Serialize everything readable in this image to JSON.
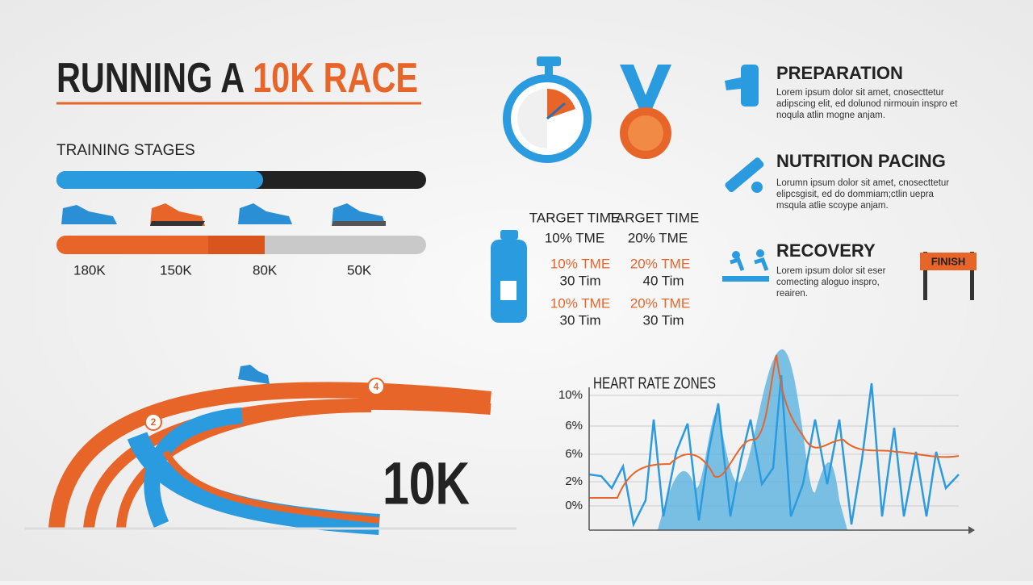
{
  "header": {
    "title_part1": "RUNNING A ",
    "title_part2": "10K RACE"
  },
  "training": {
    "title": "TRAINING STAGES",
    "labels": [
      "180K",
      "150K",
      "80K",
      "50K"
    ]
  },
  "target_table": {
    "header": [
      "TARGET TIME",
      "TARGET TIME"
    ],
    "rows": [
      [
        "10% TME",
        "20% TME"
      ],
      [
        "10% TME",
        "20% TME"
      ],
      [
        "30 Tim",
        "40 Tim"
      ],
      [
        "10% TME",
        "20% TME"
      ],
      [
        "30 Tim",
        "30 Tim"
      ]
    ]
  },
  "sections": [
    {
      "title": "PREPARATION",
      "lines": [
        "Lorem ipsum dolor sit amet, cnosecttetur",
        "adipscing elit, ed dolunod nirmouin inspro et",
        "noqula atlin mogne anjam."
      ]
    },
    {
      "title": "NUTRITION PACING",
      "lines": [
        "Lorumn ipsum dolor sit amet, cnosecttetur",
        "elipcsgisit, ed do dommiam;ctlin uepra",
        "msqula atlie scoype anjam."
      ]
    },
    {
      "title": "RECOVERY",
      "lines": [
        "Lorem ipsum dolor sit eser",
        "comecting aloguo inspro,",
        "reairen."
      ]
    }
  ],
  "finish_sign": "FINISH",
  "track": {
    "distance": "10K",
    "markers": [
      "2",
      "4"
    ]
  },
  "heart_rate": {
    "title": "HEART RATE ZONES",
    "tick_labels": [
      "10%",
      "6%",
      "6%",
      "2%",
      "0%"
    ]
  }
}
